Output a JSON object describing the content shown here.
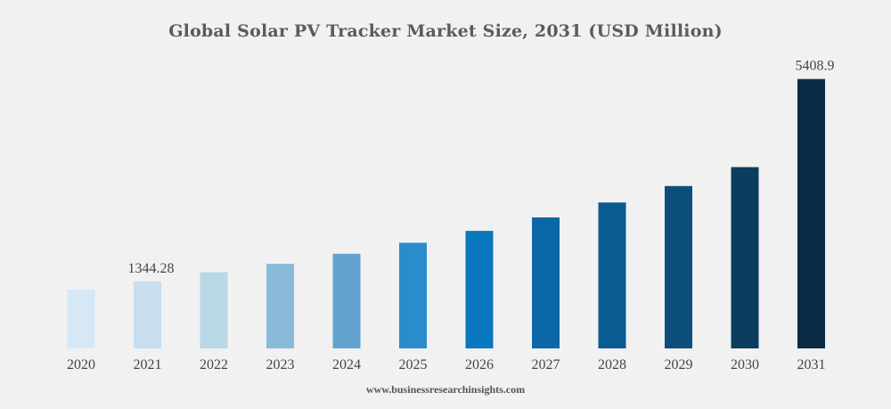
{
  "chart_data": {
    "type": "bar",
    "title": "Global Solar PV Tracker Market Size, 2031 (USD Million)",
    "xlabel": "",
    "ylabel": "",
    "categories": [
      "2020",
      "2021",
      "2022",
      "2023",
      "2024",
      "2025",
      "2026",
      "2027",
      "2028",
      "2029",
      "2030",
      "2031"
    ],
    "values": [
      1180,
      1344.28,
      1530,
      1700,
      1900,
      2120,
      2360,
      2630,
      2930,
      3260,
      3640,
      5408.9
    ],
    "data_labels": {
      "2021": "1344.28",
      "2031": "5408.9"
    },
    "ylim": [
      0,
      5600
    ],
    "grid": false,
    "legend": "none",
    "colors": [
      "#d6e8f6",
      "#c6def0",
      "#b8d8e8",
      "#89bbd9",
      "#62a2cf",
      "#2a8ccb",
      "#0978be",
      "#0c67a6",
      "#0b5a90",
      "#0b4e7b",
      "#0b3d5f",
      "#0b2a44"
    ]
  },
  "footer": {
    "watermark": "www.businessresearchinsights.com"
  }
}
